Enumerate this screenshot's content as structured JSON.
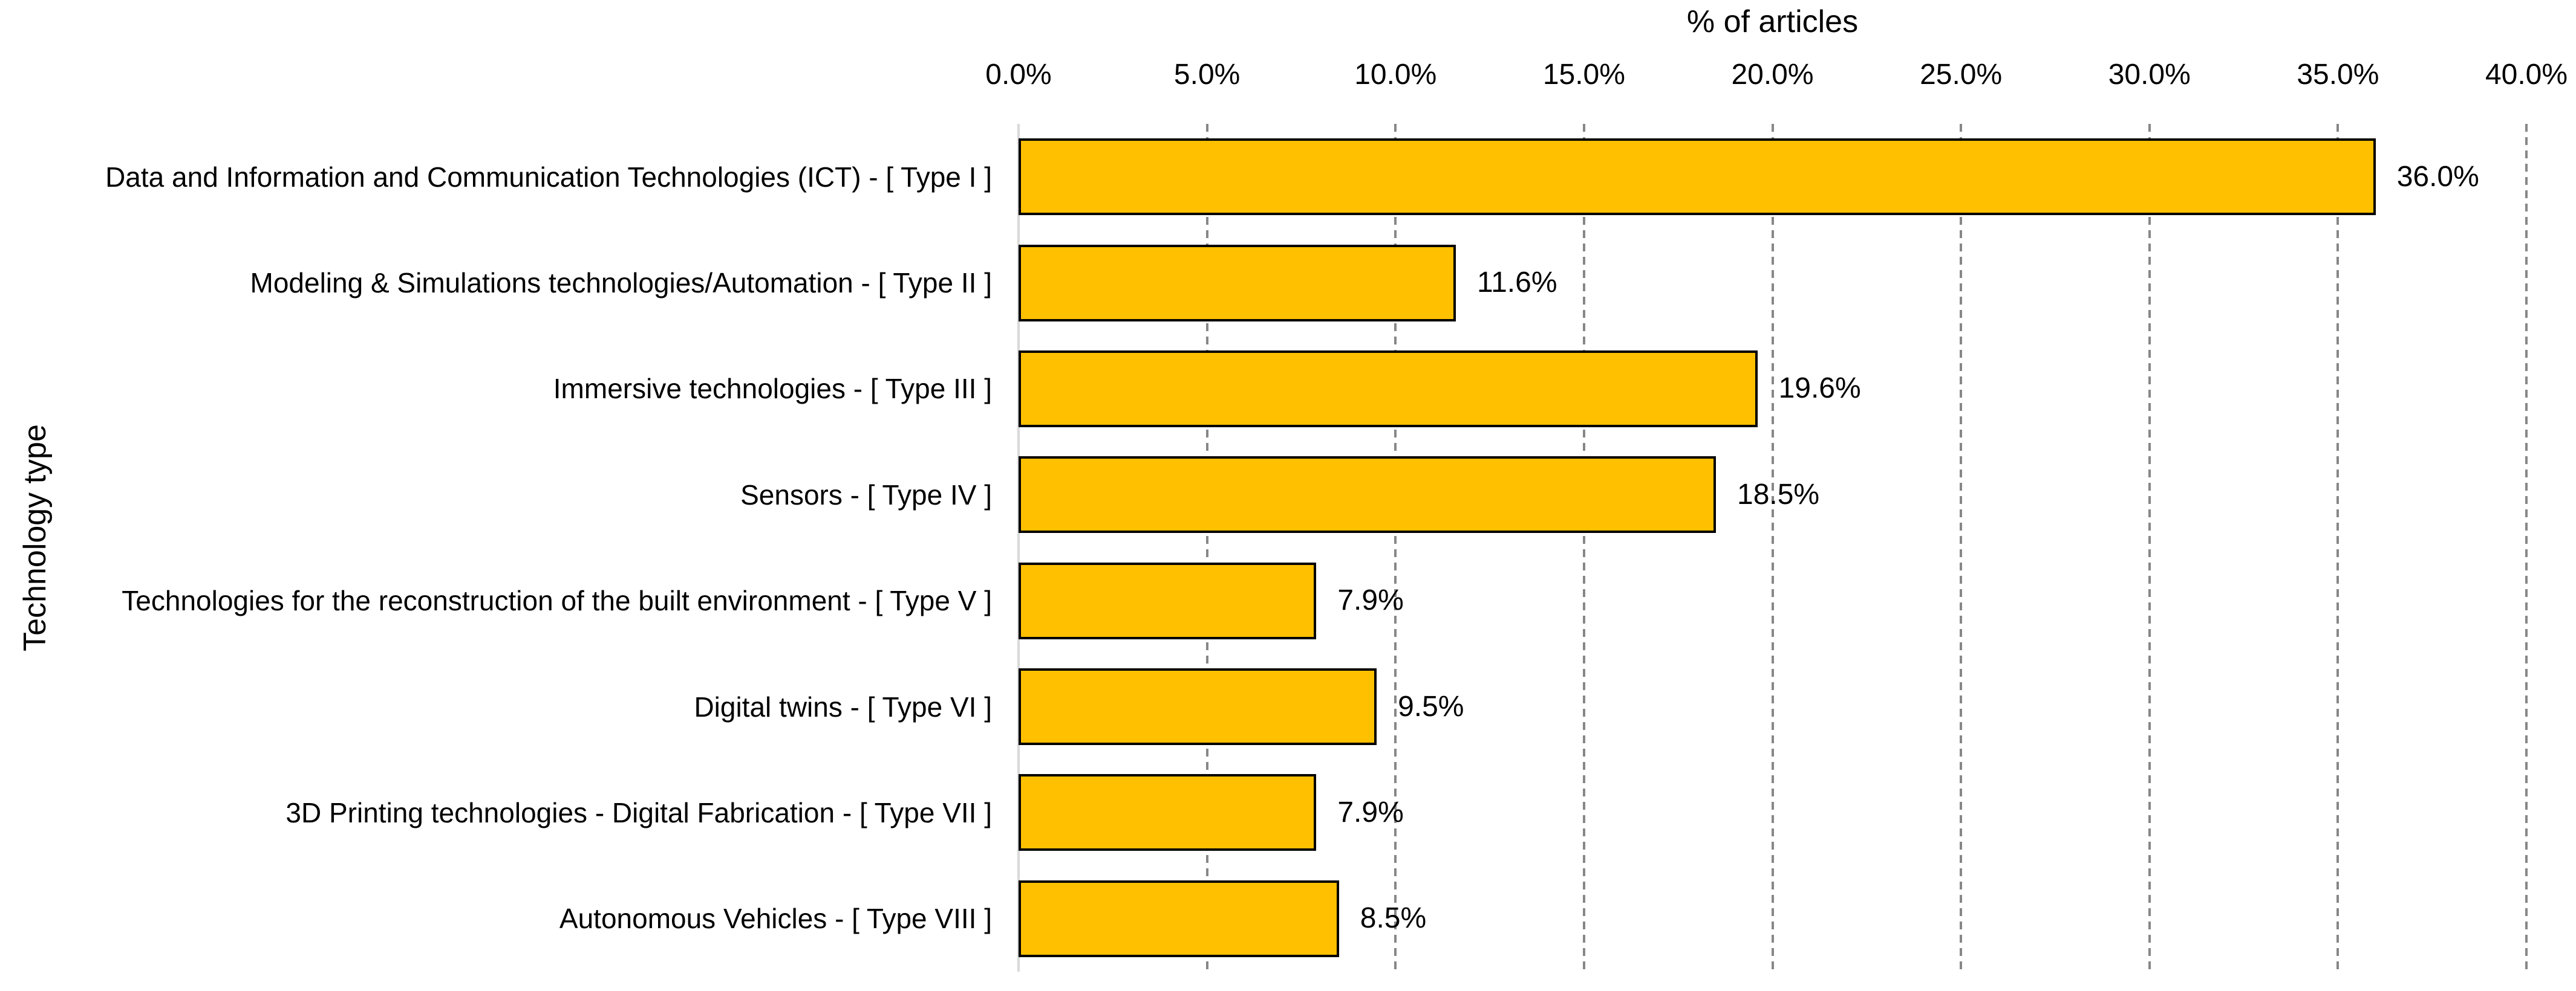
{
  "chart_data": {
    "type": "bar",
    "orientation": "horizontal",
    "title": "% of articles",
    "xlabel": "% of articles",
    "ylabel": "Technology type",
    "xlim": [
      0,
      40
    ],
    "x_ticks": [
      "0.0%",
      "5.0%",
      "10.0%",
      "15.0%",
      "20.0%",
      "25.0%",
      "30.0%",
      "35.0%",
      "40.0%"
    ],
    "tick_step_pct": 5,
    "grid": "vertical-dashed",
    "legend": "none",
    "categories": [
      "Data and Information and Communication Technologies (ICT) - [ Type I ]",
      "Modeling & Simulations technologies/Automation - [ Type II ]",
      "Immersive technologies - [ Type III ]",
      "Sensors - [ Type IV ]",
      "Technologies for the reconstruction of the built environment - [ Type V ]",
      "Digital twins - [ Type VI ]",
      "3D Printing technologies - Digital Fabrication - [ Type VII ]",
      "Autonomous Vehicles - [ Type VIII ]"
    ],
    "values": [
      36.0,
      11.6,
      19.6,
      18.5,
      7.9,
      9.5,
      7.9,
      8.5
    ],
    "value_labels": [
      "36.0%",
      "11.6%",
      "19.6%",
      "18.5%",
      "7.9%",
      "9.5%",
      "7.9%",
      "8.5%"
    ],
    "colors": {
      "bar_fill": "#FFC000",
      "bar_border": "#000000",
      "gridline": "#878787",
      "category_axis_line": "#D9D9D9",
      "text": "#000000",
      "background": "#FFFFFF"
    }
  }
}
